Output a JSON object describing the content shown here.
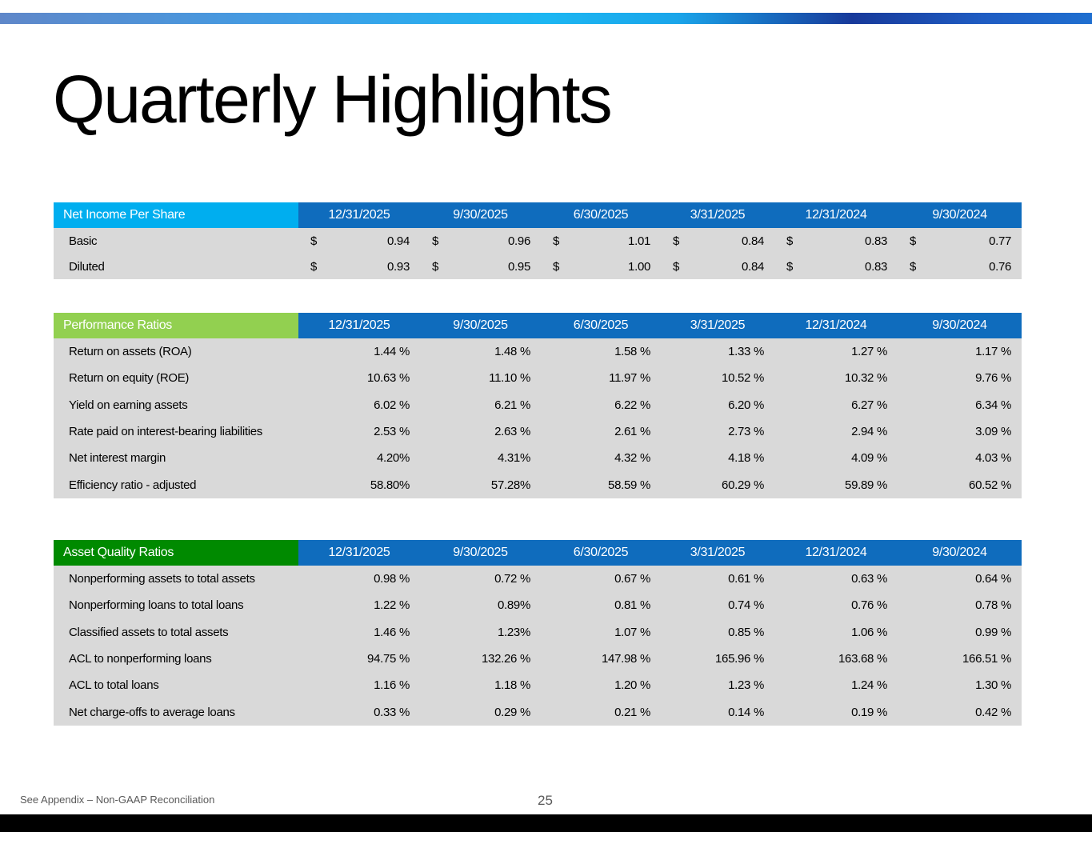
{
  "title": "Quarterly Highlights",
  "colors": {
    "net_income_header": "#00aeef",
    "performance_header": "#92d050",
    "asset_quality_header": "#008a00",
    "date_header": "#0f6cbd",
    "row_background": "#d9d9d9"
  },
  "net_income": {
    "header": "Net Income Per Share",
    "dates": [
      "12/31/2025",
      "9/30/2025",
      "6/30/2025",
      "3/31/2025",
      "12/31/2024",
      "9/30/2024"
    ],
    "currency_symbol": "$",
    "rows": [
      {
        "label": "Basic",
        "values": [
          "0.94",
          "0.96",
          "1.01",
          "0.84",
          "0.83",
          "0.77"
        ]
      },
      {
        "label": "Diluted",
        "values": [
          "0.93",
          "0.95",
          "1.00",
          "0.84",
          "0.83",
          "0.76"
        ]
      }
    ]
  },
  "performance": {
    "header": "Performance Ratios",
    "dates": [
      "12/31/2025",
      "9/30/2025",
      "6/30/2025",
      "3/31/2025",
      "12/31/2024",
      "9/30/2024"
    ],
    "rows": [
      {
        "label": "Return on assets (ROA)",
        "values": [
          "1.44 %",
          "1.48 %",
          "1.58 %",
          "1.33 %",
          "1.27 %",
          "1.17 %"
        ]
      },
      {
        "label": "Return on equity (ROE)",
        "values": [
          "10.63 %",
          "11.10 %",
          "11.97 %",
          "10.52 %",
          "10.32 %",
          "9.76 %"
        ]
      },
      {
        "label": "Yield on earning assets",
        "values": [
          "6.02 %",
          "6.21 %",
          "6.22 %",
          "6.20 %",
          "6.27 %",
          "6.34 %"
        ]
      },
      {
        "label": "Rate paid on interest-bearing liabilities",
        "values": [
          "2.53 %",
          "2.63 %",
          "2.61 %",
          "2.73 %",
          "2.94 %",
          "3.09 %"
        ]
      },
      {
        "label": "Net interest margin",
        "values": [
          "4.20%",
          "4.31%",
          "4.32 %",
          "4.18 %",
          "4.09 %",
          "4.03 %"
        ]
      },
      {
        "label": "Efficiency ratio - adjusted",
        "values": [
          "58.80%",
          "57.28%",
          "58.59 %",
          "60.29 %",
          "59.89 %",
          "60.52 %"
        ]
      }
    ]
  },
  "asset_quality": {
    "header": "Asset Quality Ratios",
    "dates": [
      "12/31/2025",
      "9/30/2025",
      "6/30/2025",
      "3/31/2025",
      "12/31/2024",
      "9/30/2024"
    ],
    "rows": [
      {
        "label": "Nonperforming assets to total assets",
        "values": [
          "0.98 %",
          "0.72 %",
          "0.67 %",
          "0.61 %",
          "0.63 %",
          "0.64 %"
        ]
      },
      {
        "label": "Nonperforming loans to total loans",
        "values": [
          "1.22 %",
          "0.89%",
          "0.81 %",
          "0.74 %",
          "0.76 %",
          "0.78 %"
        ]
      },
      {
        "label": "Classified assets to total assets",
        "values": [
          "1.46 %",
          "1.23%",
          "1.07 %",
          "0.85 %",
          "1.06 %",
          "0.99 %"
        ]
      },
      {
        "label": "ACL to nonperforming loans",
        "values": [
          "94.75 %",
          "132.26 %",
          "147.98 %",
          "165.96 %",
          "163.68 %",
          "166.51 %"
        ]
      },
      {
        "label": "ACL to total loans",
        "values": [
          "1.16 %",
          "1.18 %",
          "1.20 %",
          "1.23 %",
          "1.24 %",
          "1.30 %"
        ]
      },
      {
        "label": "Net charge-offs to average loans",
        "values": [
          "0.33 %",
          "0.29 %",
          "0.21 %",
          "0.14 %",
          "0.19 %",
          "0.42 %"
        ]
      }
    ]
  },
  "footer": {
    "footnote": "See Appendix – Non-GAAP Reconciliation",
    "page_number": "25"
  }
}
